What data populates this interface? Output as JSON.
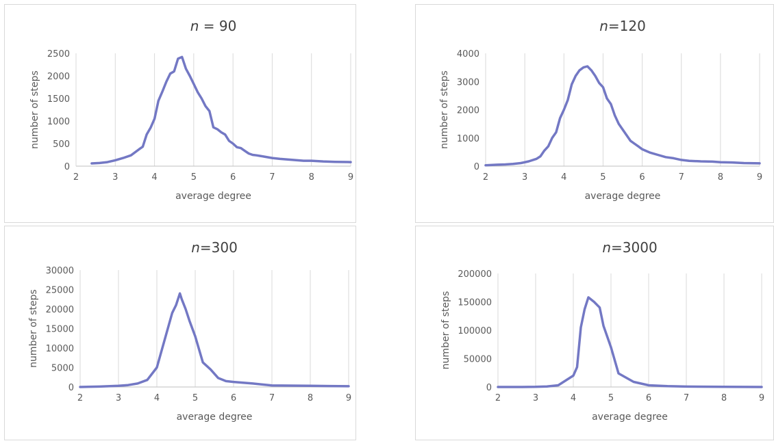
{
  "chart_data": [
    {
      "type": "line",
      "title_prefix": "n",
      "title_suffix": " = 90",
      "xlabel": "average degree",
      "ylabel": "number of steps",
      "xlim": [
        2,
        9
      ],
      "ylim": [
        0,
        2500
      ],
      "xticks": [
        "2",
        "3",
        "4",
        "5",
        "6",
        "7",
        "8",
        "9"
      ],
      "yticks": [
        "0",
        "500",
        "1000",
        "1500",
        "2000",
        "2500"
      ],
      "grid": "vertical",
      "series": [
        {
          "color": "#7378c4",
          "x": [
            2.4,
            2.6,
            2.8,
            3.0,
            3.2,
            3.4,
            3.6,
            3.7,
            3.8,
            3.9,
            4.0,
            4.1,
            4.2,
            4.3,
            4.4,
            4.5,
            4.6,
            4.7,
            4.8,
            4.9,
            5.0,
            5.1,
            5.2,
            5.3,
            5.4,
            5.5,
            5.6,
            5.7,
            5.8,
            5.9,
            6.0,
            6.1,
            6.2,
            6.3,
            6.4,
            6.5,
            6.6,
            6.8,
            7.0,
            7.2,
            7.5,
            7.8,
            8.0,
            8.3,
            8.6,
            9.0
          ],
          "y": [
            60,
            70,
            90,
            130,
            180,
            240,
            370,
            430,
            700,
            850,
            1050,
            1450,
            1650,
            1870,
            2050,
            2100,
            2380,
            2420,
            2160,
            2000,
            1820,
            1640,
            1500,
            1330,
            1220,
            860,
            820,
            750,
            700,
            560,
            500,
            420,
            400,
            340,
            280,
            250,
            240,
            210,
            180,
            160,
            140,
            120,
            120,
            105,
            95,
            90
          ]
        }
      ]
    },
    {
      "type": "line",
      "title_prefix": "n",
      "title_suffix": "=120",
      "xlabel": "average degree",
      "ylabel": "number of steps",
      "xlim": [
        2,
        9
      ],
      "ylim": [
        0,
        4000
      ],
      "xticks": [
        "2",
        "3",
        "4",
        "5",
        "6",
        "7",
        "8",
        "9"
      ],
      "yticks": [
        "0",
        "1000",
        "2000",
        "3000",
        "4000"
      ],
      "grid": "vertical",
      "series": [
        {
          "color": "#7378c4",
          "x": [
            2.0,
            2.3,
            2.5,
            2.7,
            2.9,
            3.1,
            3.3,
            3.4,
            3.5,
            3.6,
            3.7,
            3.8,
            3.9,
            4.0,
            4.1,
            4.2,
            4.3,
            4.4,
            4.5,
            4.6,
            4.7,
            4.8,
            4.9,
            5.0,
            5.1,
            5.2,
            5.3,
            5.4,
            5.5,
            5.6,
            5.7,
            5.8,
            5.9,
            6.0,
            6.1,
            6.2,
            6.4,
            6.6,
            6.8,
            7.0,
            7.2,
            7.5,
            7.8,
            8.0,
            8.3,
            8.6,
            9.0
          ],
          "y": [
            30,
            50,
            60,
            80,
            110,
            170,
            260,
            350,
            550,
            700,
            1000,
            1200,
            1700,
            2000,
            2350,
            2900,
            3200,
            3400,
            3500,
            3540,
            3400,
            3200,
            2950,
            2800,
            2400,
            2200,
            1800,
            1500,
            1300,
            1100,
            900,
            800,
            700,
            600,
            540,
            480,
            400,
            320,
            280,
            220,
            190,
            170,
            160,
            140,
            130,
            110,
            100
          ]
        }
      ]
    },
    {
      "type": "line",
      "title_prefix": "n",
      "title_suffix": "=300",
      "xlabel": "average degree",
      "ylabel": "number of steps",
      "xlim": [
        2,
        9
      ],
      "ylim": [
        0,
        30000
      ],
      "xticks": [
        "2",
        "3",
        "4",
        "5",
        "6",
        "7",
        "8",
        "9"
      ],
      "yticks": [
        "0",
        "5000",
        "10000",
        "15000",
        "20000",
        "25000",
        "30000"
      ],
      "grid": "vertical",
      "series": [
        {
          "color": "#7378c4",
          "x": [
            2.0,
            2.5,
            3.0,
            3.25,
            3.5,
            3.75,
            4.0,
            4.2,
            4.4,
            4.5,
            4.6,
            4.65,
            4.75,
            4.85,
            5.0,
            5.2,
            5.4,
            5.6,
            5.8,
            6.0,
            6.5,
            7.0,
            7.5,
            8.0,
            8.5,
            9.0
          ],
          "y": [
            0,
            100,
            300,
            500,
            900,
            1800,
            5000,
            12000,
            19000,
            21000,
            24000,
            22500,
            20000,
            17000,
            13000,
            6300,
            4500,
            2300,
            1500,
            1300,
            900,
            400,
            350,
            300,
            250,
            200
          ]
        }
      ]
    },
    {
      "type": "line",
      "title_prefix": "n",
      "title_suffix": "=3000",
      "xlabel": "average degree",
      "ylabel": "number of steps",
      "xlim": [
        2,
        9
      ],
      "ylim": [
        0,
        200000
      ],
      "xticks": [
        "2",
        "3",
        "4",
        "5",
        "6",
        "7",
        "8",
        "9"
      ],
      "yticks": [
        "0",
        "50000",
        "100000",
        "150000",
        "200000"
      ],
      "grid": "vertical",
      "series": [
        {
          "color": "#7378c4",
          "x": [
            2.0,
            2.5,
            3.0,
            3.3,
            3.6,
            4.0,
            4.1,
            4.2,
            4.3,
            4.4,
            4.55,
            4.7,
            4.8,
            5.0,
            5.2,
            5.6,
            6.0,
            6.5,
            7.0,
            8.0,
            9.0
          ],
          "y": [
            0,
            0,
            300,
            1000,
            3000,
            20000,
            35000,
            105000,
            137000,
            158000,
            150000,
            140000,
            108000,
            70000,
            24000,
            9000,
            3000,
            1500,
            700,
            300,
            0
          ]
        }
      ]
    }
  ]
}
